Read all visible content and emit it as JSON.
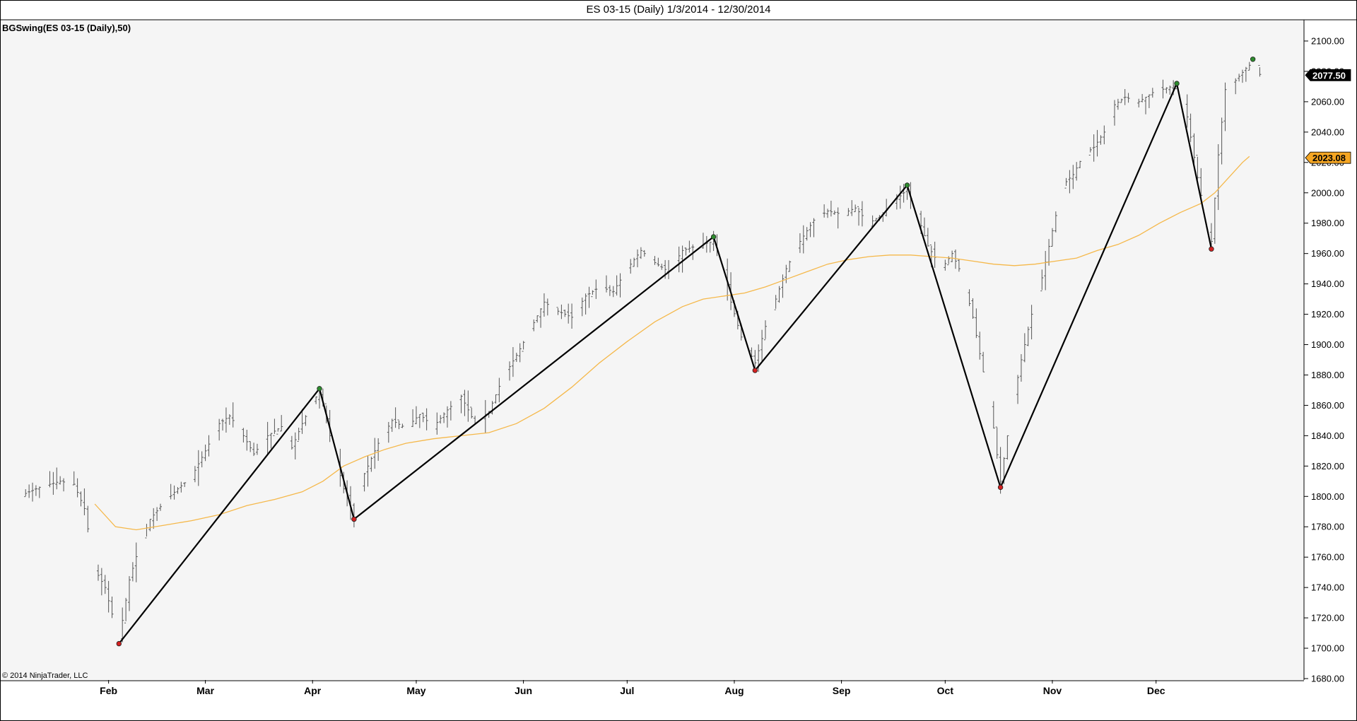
{
  "title": "ES 03-15 (Daily)  1/3/2014 - 12/30/2014",
  "indicator_label": "BGSwing(ES 03-15 (Daily),50)",
  "copyright": "© 2014 NinjaTrader, LLC",
  "colors": {
    "background": "#f5f5f5",
    "bars": "#555555",
    "swing_line": "#000000",
    "moving_average": "#f5b84a",
    "swing_high_marker": "#2e8b2e",
    "swing_low_marker": "#d42020",
    "last_price_badge": "#000000",
    "ma_badge": "#f5a623"
  },
  "chart_data": {
    "type": "line",
    "ylim": [
      1680,
      2110
    ],
    "y_ticks": [
      "1680.00",
      "1700.00",
      "1720.00",
      "1740.00",
      "1760.00",
      "1780.00",
      "1800.00",
      "1820.00",
      "1840.00",
      "1860.00",
      "1880.00",
      "1900.00",
      "1920.00",
      "1940.00",
      "1960.00",
      "1980.00",
      "2000.00",
      "2020.00",
      "2040.00",
      "2060.00",
      "2080.00",
      "2100.00"
    ],
    "x_ticks": [
      {
        "label": "Feb",
        "day": 28
      },
      {
        "label": "Mar",
        "day": 56
      },
      {
        "label": "Apr",
        "day": 87
      },
      {
        "label": "May",
        "day": 117
      },
      {
        "label": "Jun",
        "day": 148
      },
      {
        "label": "Jul",
        "day": 178
      },
      {
        "label": "Aug",
        "day": 209
      },
      {
        "label": "Sep",
        "day": 240
      },
      {
        "label": "Oct",
        "day": 270
      },
      {
        "label": "Nov",
        "day": 301
      },
      {
        "label": "Dec",
        "day": 331
      }
    ],
    "x_range": [
      -3,
      365
    ],
    "badges": {
      "last_price": "2077.50",
      "moving_average": "2023.08"
    },
    "swing_points": [
      {
        "day": 31,
        "value": 1703,
        "type": "low"
      },
      {
        "day": 89,
        "value": 1871,
        "type": "high"
      },
      {
        "day": 99,
        "value": 1785,
        "type": "low"
      },
      {
        "day": 203,
        "value": 1971,
        "type": "high"
      },
      {
        "day": 215,
        "value": 1883,
        "type": "low"
      },
      {
        "day": 259,
        "value": 2005,
        "type": "high"
      },
      {
        "day": 286,
        "value": 1806,
        "type": "low"
      },
      {
        "day": 337,
        "value": 2072,
        "type": "high"
      },
      {
        "day": 347,
        "value": 1963,
        "type": "low"
      },
      {
        "day": 359,
        "value": 2088,
        "type": "high"
      }
    ],
    "price_path": [
      [
        2,
        1800
      ],
      [
        8,
        1806
      ],
      [
        14,
        1810
      ],
      [
        18,
        1808
      ],
      [
        21,
        1792
      ],
      [
        24,
        1752
      ],
      [
        27,
        1740
      ],
      [
        31,
        1705
      ],
      [
        34,
        1745
      ],
      [
        37,
        1768
      ],
      [
        40,
        1785
      ],
      [
        44,
        1796
      ],
      [
        48,
        1805
      ],
      [
        52,
        1813
      ],
      [
        56,
        1830
      ],
      [
        60,
        1848
      ],
      [
        63,
        1853
      ],
      [
        66,
        1844
      ],
      [
        70,
        1828
      ],
      [
        74,
        1840
      ],
      [
        78,
        1846
      ],
      [
        81,
        1832
      ],
      [
        84,
        1848
      ],
      [
        87,
        1862
      ],
      [
        89,
        1869
      ],
      [
        92,
        1840
      ],
      [
        96,
        1805
      ],
      [
        99,
        1786
      ],
      [
        102,
        1815
      ],
      [
        106,
        1835
      ],
      [
        110,
        1850
      ],
      [
        114,
        1845
      ],
      [
        118,
        1854
      ],
      [
        122,
        1846
      ],
      [
        126,
        1857
      ],
      [
        130,
        1866
      ],
      [
        134,
        1848
      ],
      [
        138,
        1856
      ],
      [
        142,
        1878
      ],
      [
        146,
        1893
      ],
      [
        150,
        1910
      ],
      [
        154,
        1928
      ],
      [
        158,
        1922
      ],
      [
        162,
        1918
      ],
      [
        166,
        1932
      ],
      [
        170,
        1938
      ],
      [
        174,
        1935
      ],
      [
        178,
        1950
      ],
      [
        182,
        1962
      ],
      [
        186,
        1954
      ],
      [
        190,
        1948
      ],
      [
        194,
        1962
      ],
      [
        198,
        1965
      ],
      [
        203,
        1968
      ],
      [
        206,
        1950
      ],
      [
        208,
        1928
      ],
      [
        211,
        1905
      ],
      [
        215,
        1888
      ],
      [
        218,
        1912
      ],
      [
        221,
        1930
      ],
      [
        224,
        1950
      ],
      [
        228,
        1968
      ],
      [
        232,
        1982
      ],
      [
        236,
        1988
      ],
      [
        240,
        1986
      ],
      [
        244,
        1990
      ],
      [
        248,
        1980
      ],
      [
        252,
        1986
      ],
      [
        256,
        1996
      ],
      [
        259,
        2002
      ],
      [
        262,
        1985
      ],
      [
        265,
        1965
      ],
      [
        269,
        1950
      ],
      [
        272,
        1960
      ],
      [
        275,
        1945
      ],
      [
        278,
        1918
      ],
      [
        281,
        1882
      ],
      [
        284,
        1845
      ],
      [
        286,
        1810
      ],
      [
        289,
        1855
      ],
      [
        292,
        1890
      ],
      [
        295,
        1920
      ],
      [
        298,
        1944
      ],
      [
        301,
        1975
      ],
      [
        304,
        2005
      ],
      [
        307,
        2012
      ],
      [
        310,
        2025
      ],
      [
        313,
        2030
      ],
      [
        316,
        2040
      ],
      [
        319,
        2058
      ],
      [
        322,
        2063
      ],
      [
        326,
        2060
      ],
      [
        330,
        2066
      ],
      [
        334,
        2069
      ],
      [
        337,
        2071
      ],
      [
        340,
        2050
      ],
      [
        343,
        2010
      ],
      [
        346,
        1975
      ],
      [
        347,
        1968
      ],
      [
        349,
        2025
      ],
      [
        351,
        2068
      ],
      [
        354,
        2074
      ],
      [
        357,
        2082
      ],
      [
        359,
        2086
      ],
      [
        361,
        2078
      ]
    ],
    "moving_average_path": [
      [
        24,
        1795
      ],
      [
        30,
        1780
      ],
      [
        36,
        1778
      ],
      [
        44,
        1781
      ],
      [
        52,
        1784
      ],
      [
        60,
        1788
      ],
      [
        68,
        1794
      ],
      [
        76,
        1798
      ],
      [
        84,
        1803
      ],
      [
        90,
        1810
      ],
      [
        96,
        1820
      ],
      [
        102,
        1826
      ],
      [
        108,
        1831
      ],
      [
        114,
        1835
      ],
      [
        122,
        1838
      ],
      [
        130,
        1840
      ],
      [
        138,
        1842
      ],
      [
        146,
        1848
      ],
      [
        154,
        1858
      ],
      [
        162,
        1872
      ],
      [
        170,
        1888
      ],
      [
        178,
        1902
      ],
      [
        186,
        1915
      ],
      [
        194,
        1925
      ],
      [
        200,
        1930
      ],
      [
        206,
        1932
      ],
      [
        212,
        1934
      ],
      [
        218,
        1938
      ],
      [
        224,
        1943
      ],
      [
        230,
        1948
      ],
      [
        236,
        1953
      ],
      [
        242,
        1956
      ],
      [
        248,
        1958
      ],
      [
        254,
        1959
      ],
      [
        260,
        1959
      ],
      [
        266,
        1958
      ],
      [
        272,
        1957
      ],
      [
        278,
        1955
      ],
      [
        284,
        1953
      ],
      [
        290,
        1952
      ],
      [
        296,
        1953
      ],
      [
        302,
        1955
      ],
      [
        308,
        1957
      ],
      [
        314,
        1962
      ],
      [
        320,
        1966
      ],
      [
        326,
        1972
      ],
      [
        332,
        1980
      ],
      [
        338,
        1987
      ],
      [
        344,
        1993
      ],
      [
        348,
        2000
      ],
      [
        352,
        2010
      ],
      [
        356,
        2020
      ],
      [
        358,
        2024
      ]
    ]
  }
}
